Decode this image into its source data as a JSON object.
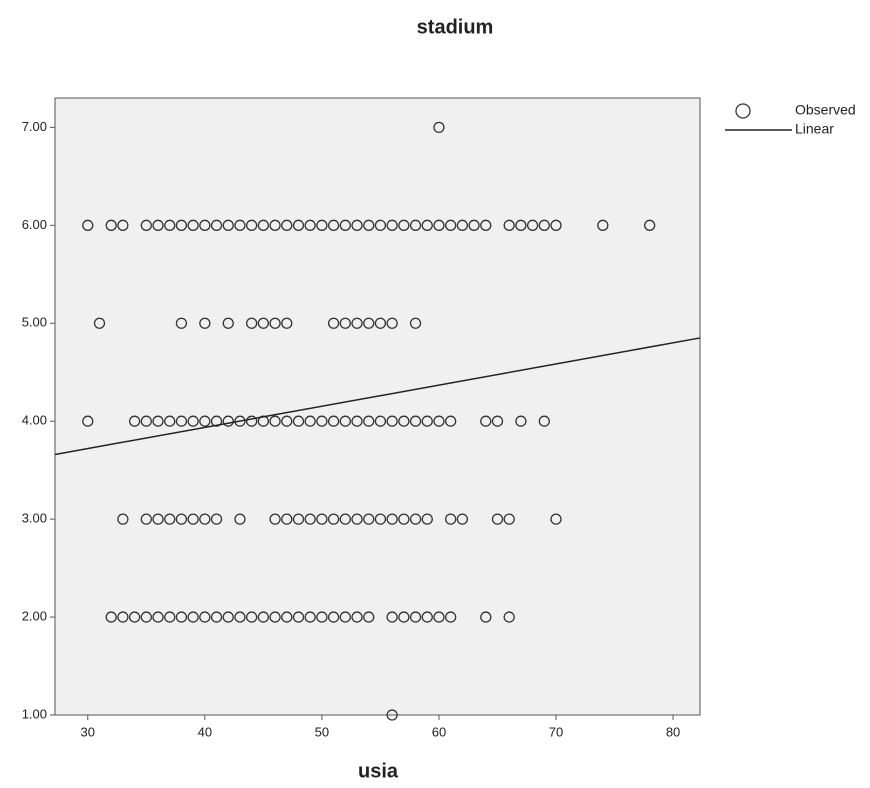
{
  "chart_data": {
    "type": "scatter",
    "title": "stadium",
    "x_label": "usia",
    "xlim": [
      27.2,
      82.3
    ],
    "ylim": [
      1,
      7.3
    ],
    "xticks": [
      30,
      40,
      50,
      60,
      70,
      80
    ],
    "yticks": [
      {
        "value": 1,
        "label": "1.00"
      },
      {
        "value": 2,
        "label": "2.00"
      },
      {
        "value": 3,
        "label": "3.00"
      },
      {
        "value": 4,
        "label": "4.00"
      },
      {
        "value": 5,
        "label": "5.00"
      },
      {
        "value": 6,
        "label": "6.00"
      },
      {
        "value": 7,
        "label": "7.00"
      }
    ],
    "series": [
      {
        "name": "Observed",
        "kind": "scatter",
        "color": "#333333",
        "x": [
          60,
          30,
          32,
          33,
          35,
          36,
          37,
          38,
          39,
          40,
          41,
          42,
          43,
          44,
          45,
          46,
          47,
          48,
          49,
          50,
          51,
          52,
          53,
          54,
          55,
          56,
          57,
          58,
          59,
          60,
          61,
          62,
          63,
          64,
          66,
          67,
          68,
          69,
          70,
          74,
          78,
          31,
          38,
          40,
          42,
          44,
          45,
          46,
          47,
          51,
          52,
          53,
          54,
          55,
          56,
          58,
          30,
          34,
          35,
          36,
          37,
          38,
          39,
          40,
          41,
          42,
          43,
          44,
          45,
          46,
          47,
          48,
          49,
          50,
          51,
          52,
          53,
          54,
          55,
          56,
          57,
          58,
          59,
          60,
          61,
          64,
          65,
          67,
          69,
          33,
          35,
          36,
          37,
          38,
          39,
          40,
          41,
          43,
          46,
          47,
          48,
          49,
          50,
          51,
          52,
          53,
          54,
          55,
          56,
          57,
          58,
          59,
          61,
          62,
          65,
          66,
          70,
          32,
          33,
          34,
          35,
          36,
          37,
          38,
          39,
          40,
          41,
          42,
          43,
          44,
          45,
          46,
          47,
          48,
          49,
          50,
          51,
          52,
          53,
          54,
          56,
          57,
          58,
          59,
          60,
          61,
          64,
          66,
          56
        ],
        "values": [
          7,
          6,
          6,
          6,
          6,
          6,
          6,
          6,
          6,
          6,
          6,
          6,
          6,
          6,
          6,
          6,
          6,
          6,
          6,
          6,
          6,
          6,
          6,
          6,
          6,
          6,
          6,
          6,
          6,
          6,
          6,
          6,
          6,
          6,
          6,
          6,
          6,
          6,
          6,
          6,
          6,
          5,
          5,
          5,
          5,
          5,
          5,
          5,
          5,
          5,
          5,
          5,
          5,
          5,
          5,
          5,
          4,
          4,
          4,
          4,
          4,
          4,
          4,
          4,
          4,
          4,
          4,
          4,
          4,
          4,
          4,
          4,
          4,
          4,
          4,
          4,
          4,
          4,
          4,
          4,
          4,
          4,
          4,
          4,
          4,
          4,
          4,
          4,
          4,
          3,
          3,
          3,
          3,
          3,
          3,
          3,
          3,
          3,
          3,
          3,
          3,
          3,
          3,
          3,
          3,
          3,
          3,
          3,
          3,
          3,
          3,
          3,
          3,
          3,
          3,
          3,
          3,
          2,
          2,
          2,
          2,
          2,
          2,
          2,
          2,
          2,
          2,
          2,
          2,
          2,
          2,
          2,
          2,
          2,
          2,
          2,
          2,
          2,
          2,
          2,
          2,
          2,
          2,
          2,
          2,
          2,
          2,
          2,
          1
        ]
      },
      {
        "name": "Linear",
        "kind": "line",
        "color": "#222222",
        "x": [
          27.2,
          82.3
        ],
        "values": [
          3.66,
          4.85
        ]
      }
    ]
  }
}
